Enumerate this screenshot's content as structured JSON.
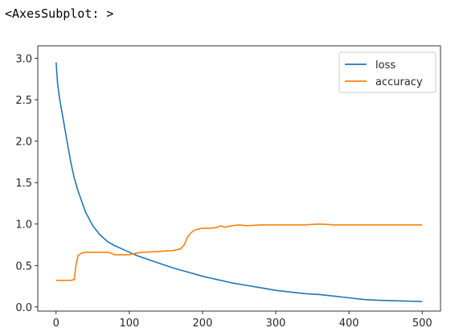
{
  "output_repr": "<AxesSubplot: >",
  "chart_data": {
    "type": "line",
    "title": "",
    "xlabel": "",
    "ylabel": "",
    "xlim": [
      -25,
      525
    ],
    "ylim": [
      -0.05,
      3.15
    ],
    "xticks": [
      0,
      100,
      200,
      300,
      400,
      500
    ],
    "yticks": [
      0.0,
      0.5,
      1.0,
      1.5,
      2.0,
      2.5,
      3.0
    ],
    "xtick_labels": [
      "0",
      "100",
      "200",
      "300",
      "400",
      "500"
    ],
    "ytick_labels": [
      "0.0",
      "0.5",
      "1.0",
      "1.5",
      "2.0",
      "2.5",
      "3.0"
    ],
    "legend_position": "top-right",
    "grid": false,
    "series": [
      {
        "name": "loss",
        "color": "#1f77b4",
        "x": [
          0,
          2,
          5,
          10,
          15,
          20,
          25,
          30,
          40,
          50,
          60,
          70,
          80,
          90,
          100,
          110,
          120,
          140,
          160,
          180,
          200,
          220,
          240,
          260,
          280,
          300,
          320,
          340,
          360,
          380,
          400,
          420,
          440,
          460,
          480,
          500
        ],
        "y": [
          2.95,
          2.7,
          2.5,
          2.25,
          2.0,
          1.75,
          1.55,
          1.4,
          1.15,
          0.98,
          0.87,
          0.79,
          0.74,
          0.7,
          0.66,
          0.62,
          0.59,
          0.53,
          0.47,
          0.42,
          0.37,
          0.33,
          0.29,
          0.26,
          0.23,
          0.2,
          0.18,
          0.16,
          0.15,
          0.13,
          0.11,
          0.09,
          0.08,
          0.075,
          0.07,
          0.065
        ]
      },
      {
        "name": "accuracy",
        "color": "#ff7f0e",
        "x": [
          0,
          10,
          20,
          25,
          27,
          30,
          35,
          40,
          50,
          60,
          70,
          75,
          80,
          90,
          100,
          105,
          110,
          120,
          140,
          160,
          170,
          175,
          180,
          185,
          190,
          195,
          200,
          210,
          220,
          225,
          230,
          240,
          250,
          260,
          280,
          300,
          320,
          340,
          360,
          380,
          400,
          420,
          440,
          460,
          480,
          500
        ],
        "y": [
          0.32,
          0.32,
          0.32,
          0.33,
          0.5,
          0.62,
          0.65,
          0.66,
          0.66,
          0.66,
          0.66,
          0.65,
          0.63,
          0.63,
          0.63,
          0.64,
          0.65,
          0.66,
          0.67,
          0.68,
          0.7,
          0.75,
          0.85,
          0.9,
          0.93,
          0.94,
          0.95,
          0.95,
          0.96,
          0.98,
          0.96,
          0.98,
          0.99,
          0.98,
          0.99,
          0.99,
          0.99,
          0.99,
          1.0,
          0.99,
          0.99,
          0.99,
          0.99,
          0.99,
          0.99,
          0.99
        ]
      }
    ]
  }
}
